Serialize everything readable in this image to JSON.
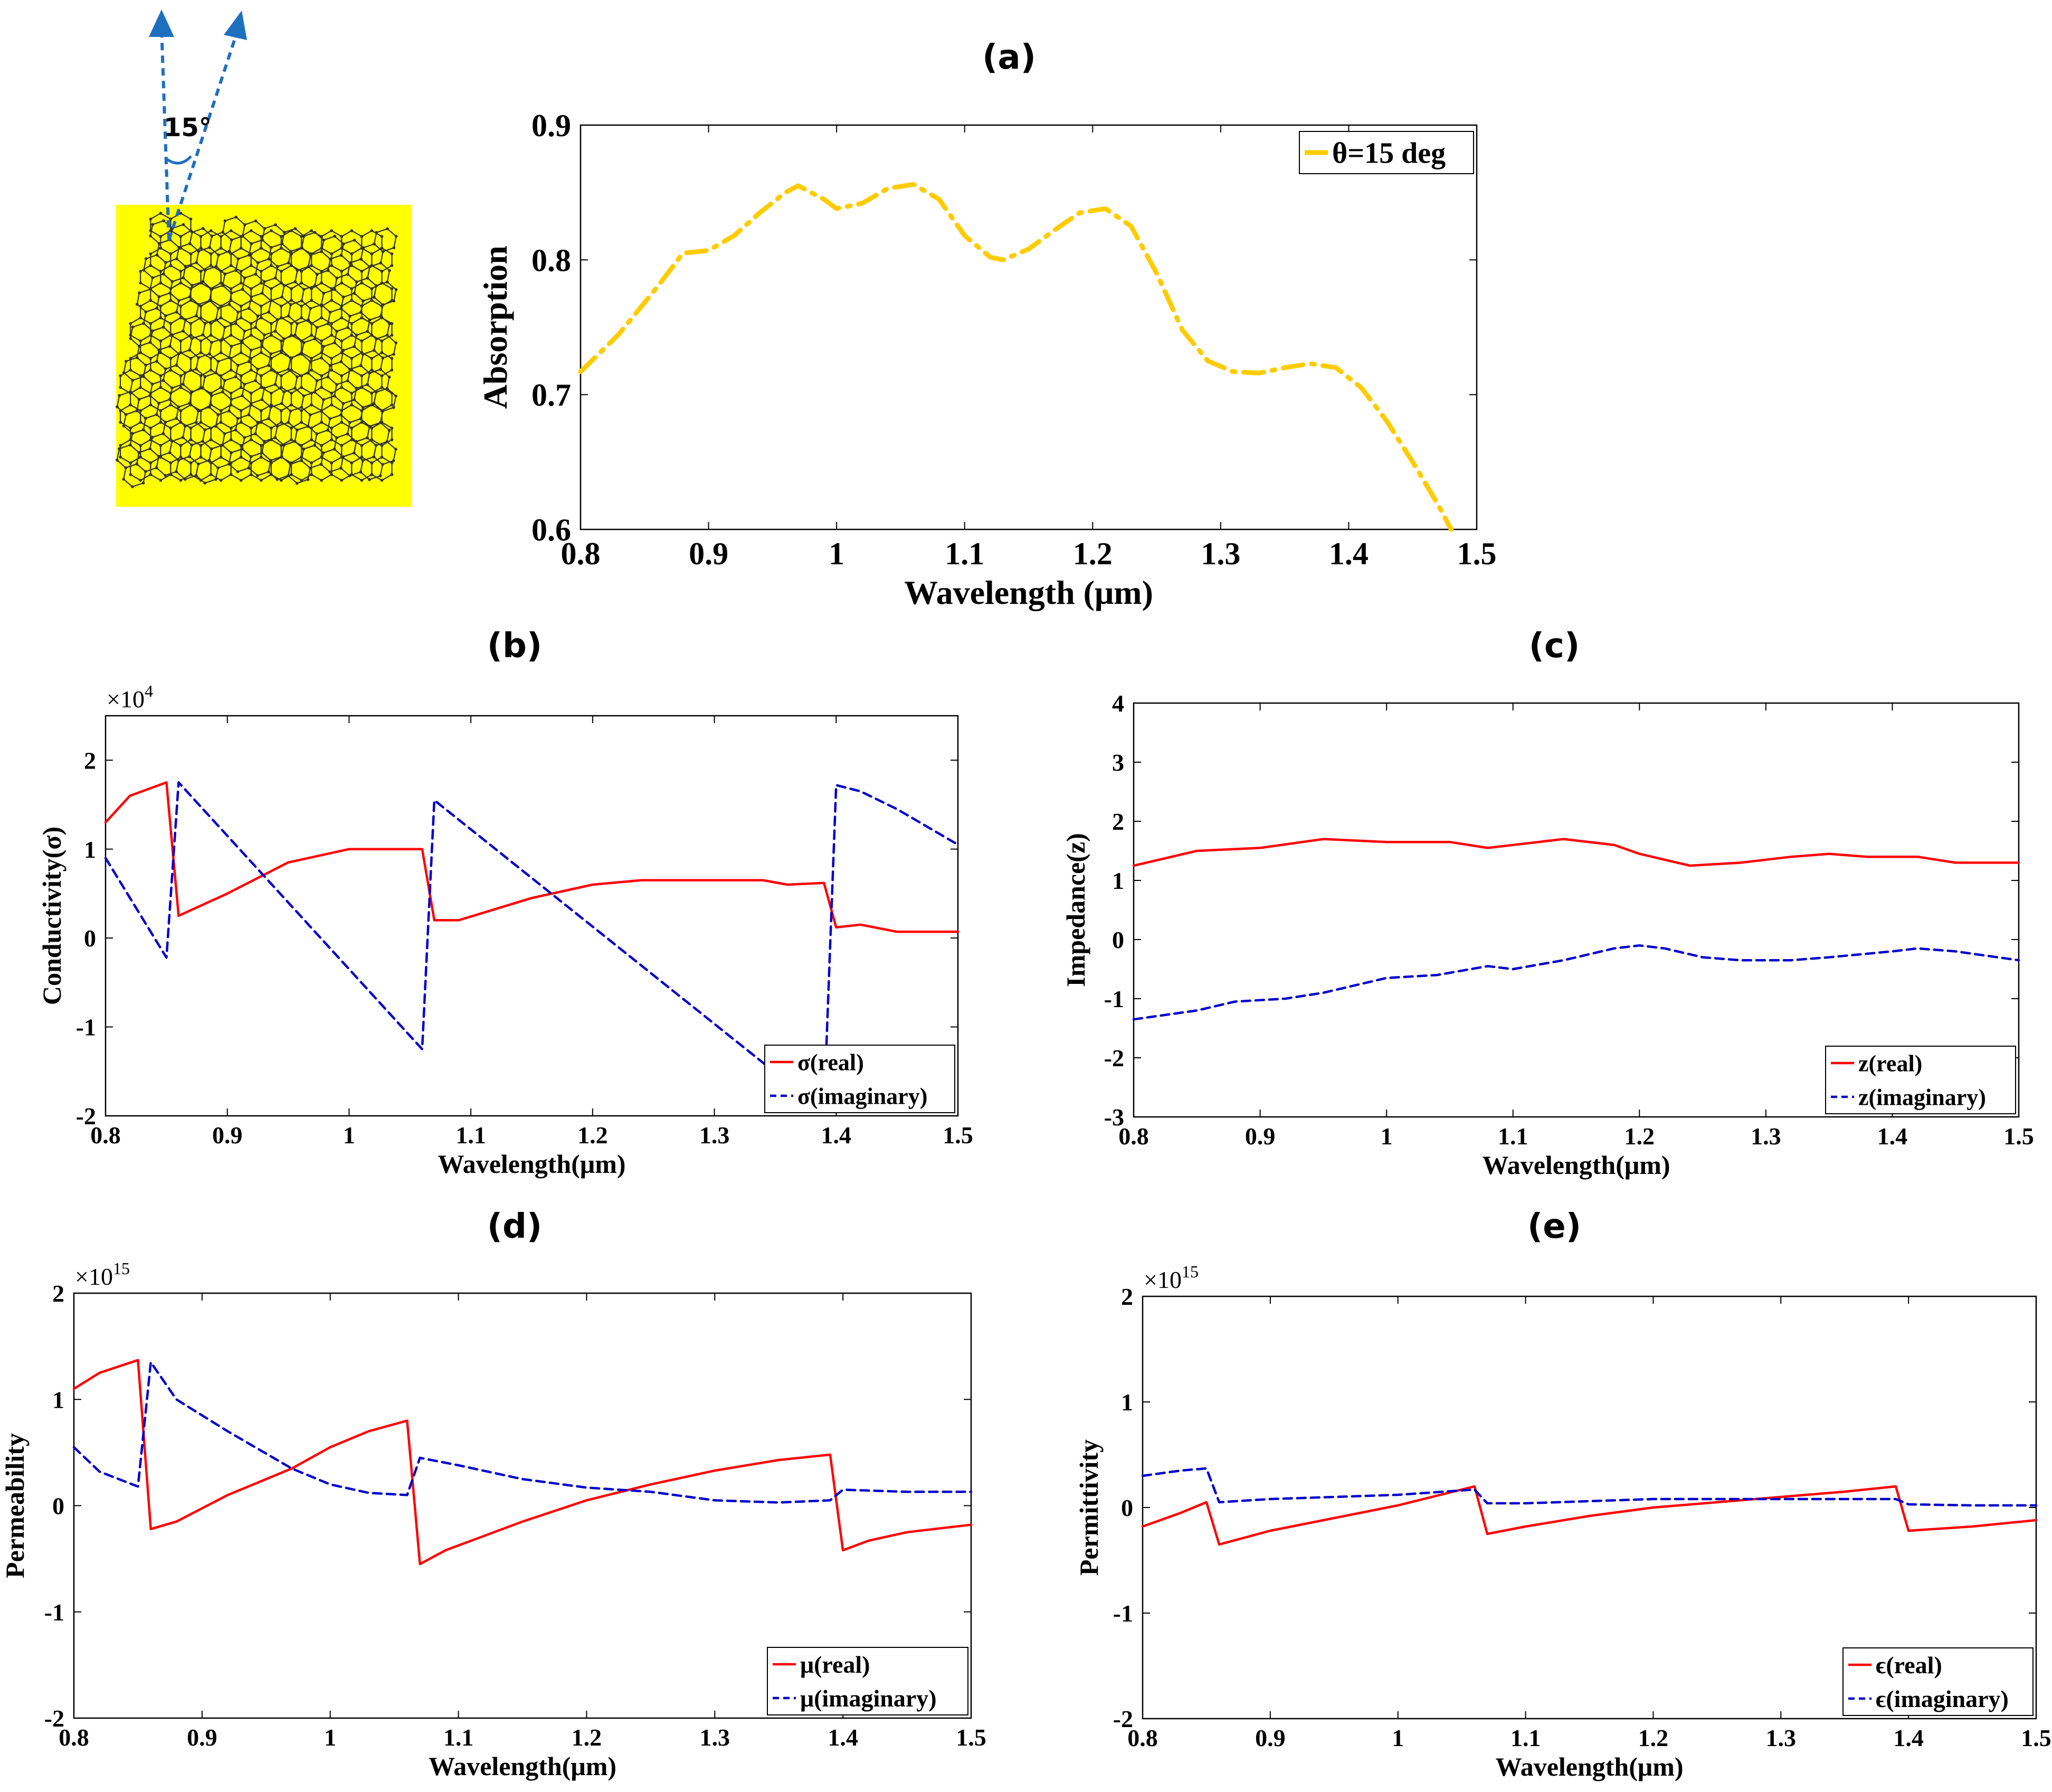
{
  "panel_labels": {
    "a": "(a)",
    "b": "(b)",
    "c": "(c)",
    "d": "(d)",
    "e": "(e)"
  },
  "illustration": {
    "angle_label": "15°",
    "substrate_color": "#ffff00",
    "lattice_color": "#333333",
    "arrow_color": "#1f6fbf"
  },
  "colors": {
    "absorption": "#ffcc00",
    "real": "#ff0000",
    "imag": "#0000cc"
  },
  "chart_data": [
    {
      "id": "a",
      "type": "line",
      "xlabel": "Wavelength (μm)",
      "ylabel": "Absorption",
      "xlim": [
        0.8,
        1.5
      ],
      "ylim": [
        0.6,
        0.9
      ],
      "xticks": [
        "0.8",
        "0.9",
        "1",
        "1.1",
        "1.2",
        "1.3",
        "1.4",
        "1.5"
      ],
      "yticks": [
        "0.6",
        "0.7",
        "0.8",
        "0.9"
      ],
      "legend_position": "top-right",
      "series": [
        {
          "name": "θ=15 deg",
          "style": "dashdot",
          "color": "#ffcc00",
          "x": [
            0.8,
            0.83,
            0.86,
            0.88,
            0.9,
            0.92,
            0.94,
            0.96,
            0.97,
            0.99,
            1.0,
            1.02,
            1.04,
            1.06,
            1.08,
            1.1,
            1.12,
            1.13,
            1.15,
            1.17,
            1.19,
            1.21,
            1.23,
            1.25,
            1.27,
            1.29,
            1.31,
            1.33,
            1.35,
            1.37,
            1.39,
            1.41,
            1.43,
            1.45,
            1.47,
            1.48
          ],
          "y": [
            0.717,
            0.745,
            0.78,
            0.805,
            0.807,
            0.818,
            0.835,
            0.85,
            0.855,
            0.845,
            0.838,
            0.842,
            0.853,
            0.856,
            0.845,
            0.818,
            0.802,
            0.8,
            0.808,
            0.822,
            0.835,
            0.838,
            0.825,
            0.79,
            0.748,
            0.725,
            0.717,
            0.716,
            0.72,
            0.723,
            0.72,
            0.705,
            0.68,
            0.65,
            0.618,
            0.6
          ]
        }
      ]
    },
    {
      "id": "b",
      "type": "line",
      "xlabel": "Wavelength(μm)",
      "ylabel": "Conductivity(σ)",
      "multiplier": "×10",
      "multiplier_exp": "4",
      "xlim": [
        0.8,
        1.5
      ],
      "ylim": [
        -2,
        2.5
      ],
      "xticks": [
        "0.8",
        "0.9",
        "1",
        "1.1",
        "1.2",
        "1.3",
        "1.4",
        "1.5"
      ],
      "yticks": [
        "-2",
        "-1",
        "0",
        "1",
        "2"
      ],
      "legend_position": "bottom-right",
      "series": [
        {
          "name": "σ(real)",
          "style": "solid",
          "color": "#ff0000",
          "x": [
            0.8,
            0.82,
            0.84,
            0.85,
            0.86,
            0.9,
            0.95,
            1.0,
            1.05,
            1.06,
            1.07,
            1.09,
            1.15,
            1.2,
            1.24,
            1.3,
            1.34,
            1.36,
            1.39,
            1.4,
            1.42,
            1.45,
            1.5
          ],
          "y": [
            1.3,
            1.6,
            1.7,
            1.75,
            0.25,
            0.5,
            0.85,
            1.0,
            1.0,
            1.0,
            0.2,
            0.2,
            0.45,
            0.6,
            0.65,
            0.65,
            0.65,
            0.6,
            0.62,
            0.12,
            0.15,
            0.07,
            0.07
          ]
        },
        {
          "name": "σ(imaginary)",
          "style": "dashed",
          "color": "#0000cc",
          "x": [
            0.8,
            0.85,
            0.86,
            1.06,
            1.07,
            1.39,
            1.4,
            1.42,
            1.45,
            1.5
          ],
          "y": [
            0.9,
            -0.22,
            1.75,
            -1.25,
            1.55,
            -1.95,
            1.72,
            1.65,
            1.45,
            1.05
          ]
        }
      ]
    },
    {
      "id": "c",
      "type": "line",
      "xlabel": "Wavelength(μm)",
      "ylabel": "Impedance(z)",
      "xlim": [
        0.8,
        1.5
      ],
      "ylim": [
        -3,
        4
      ],
      "xticks": [
        "0.8",
        "0.9",
        "1",
        "1.1",
        "1.2",
        "1.3",
        "1.4",
        "1.5"
      ],
      "yticks": [
        "-3",
        "-2",
        "-1",
        "0",
        "1",
        "2",
        "3",
        "4"
      ],
      "legend_position": "bottom-right",
      "series": [
        {
          "name": "z(real)",
          "style": "solid",
          "color": "#ff0000",
          "x": [
            0.8,
            0.85,
            0.9,
            0.95,
            1.0,
            1.05,
            1.08,
            1.1,
            1.14,
            1.18,
            1.2,
            1.24,
            1.28,
            1.32,
            1.35,
            1.38,
            1.42,
            1.45,
            1.5
          ],
          "y": [
            1.25,
            1.5,
            1.55,
            1.7,
            1.65,
            1.65,
            1.55,
            1.6,
            1.7,
            1.6,
            1.45,
            1.25,
            1.3,
            1.4,
            1.45,
            1.4,
            1.4,
            1.3,
            1.3
          ]
        },
        {
          "name": "z(imaginary)",
          "style": "dashed",
          "color": "#0000cc",
          "x": [
            0.8,
            0.85,
            0.88,
            0.92,
            0.95,
            1.0,
            1.04,
            1.08,
            1.1,
            1.14,
            1.18,
            1.2,
            1.22,
            1.25,
            1.28,
            1.32,
            1.35,
            1.4,
            1.42,
            1.45,
            1.5
          ],
          "y": [
            -1.35,
            -1.2,
            -1.05,
            -1.0,
            -0.9,
            -0.65,
            -0.6,
            -0.45,
            -0.5,
            -0.35,
            -0.15,
            -0.1,
            -0.15,
            -0.3,
            -0.35,
            -0.35,
            -0.3,
            -0.2,
            -0.15,
            -0.2,
            -0.35
          ]
        }
      ]
    },
    {
      "id": "d",
      "type": "line",
      "xlabel": "Wavelength(μm)",
      "ylabel": "Permeability",
      "multiplier": "×10",
      "multiplier_exp": "15",
      "xlim": [
        0.8,
        1.5
      ],
      "ylim": [
        -2,
        2
      ],
      "xticks": [
        "0.8",
        "0.9",
        "1",
        "1.1",
        "1.2",
        "1.3",
        "1.4",
        "1.5"
      ],
      "yticks": [
        "-2",
        "-1",
        "0",
        "1",
        "2"
      ],
      "legend_position": "bottom-right",
      "series": [
        {
          "name": "μ(real)",
          "style": "solid",
          "color": "#ff0000",
          "x": [
            0.8,
            0.82,
            0.84,
            0.85,
            0.86,
            0.88,
            0.92,
            0.97,
            1.0,
            1.03,
            1.06,
            1.07,
            1.09,
            1.15,
            1.2,
            1.25,
            1.3,
            1.35,
            1.39,
            1.4,
            1.42,
            1.45,
            1.5
          ],
          "y": [
            1.1,
            1.25,
            1.33,
            1.37,
            -0.22,
            -0.15,
            0.1,
            0.35,
            0.55,
            0.7,
            0.8,
            -0.55,
            -0.42,
            -0.15,
            0.05,
            0.2,
            0.33,
            0.43,
            0.48,
            -0.42,
            -0.33,
            -0.25,
            -0.18
          ]
        },
        {
          "name": "μ(imaginary)",
          "style": "dashed",
          "color": "#0000cc",
          "x": [
            0.8,
            0.82,
            0.85,
            0.86,
            0.88,
            0.92,
            0.97,
            1.0,
            1.03,
            1.06,
            1.07,
            1.1,
            1.15,
            1.2,
            1.25,
            1.3,
            1.35,
            1.39,
            1.4,
            1.45,
            1.5
          ],
          "y": [
            0.55,
            0.32,
            0.18,
            1.35,
            1.0,
            0.7,
            0.35,
            0.2,
            0.12,
            0.1,
            0.45,
            0.38,
            0.25,
            0.17,
            0.13,
            0.05,
            0.03,
            0.05,
            0.15,
            0.13,
            0.13
          ]
        }
      ]
    },
    {
      "id": "e",
      "type": "line",
      "xlabel": "Wavelength(μm)",
      "ylabel": "Permittivity",
      "multiplier": "×10",
      "multiplier_exp": "15",
      "xlim": [
        0.8,
        1.5
      ],
      "ylim": [
        -2,
        2
      ],
      "xticks": [
        "0.8",
        "0.9",
        "1",
        "1.1",
        "1.2",
        "1.3",
        "1.4",
        "1.5"
      ],
      "yticks": [
        "-2",
        "-1",
        "0",
        "1",
        "2"
      ],
      "legend_position": "bottom-right",
      "series": [
        {
          "name": "ϵ(real)",
          "style": "solid",
          "color": "#ff0000",
          "x": [
            0.8,
            0.83,
            0.85,
            0.86,
            0.9,
            0.95,
            1.0,
            1.06,
            1.07,
            1.1,
            1.15,
            1.2,
            1.25,
            1.3,
            1.35,
            1.39,
            1.4,
            1.45,
            1.5
          ],
          "y": [
            -0.18,
            -0.05,
            0.05,
            -0.35,
            -0.22,
            -0.1,
            0.02,
            0.2,
            -0.25,
            -0.18,
            -0.08,
            0.0,
            0.05,
            0.1,
            0.15,
            0.2,
            -0.22,
            -0.18,
            -0.12
          ]
        },
        {
          "name": "ϵ(imaginary)",
          "style": "dashed",
          "color": "#0000cc",
          "x": [
            0.8,
            0.83,
            0.85,
            0.86,
            0.9,
            0.95,
            1.0,
            1.06,
            1.07,
            1.1,
            1.15,
            1.2,
            1.25,
            1.3,
            1.35,
            1.39,
            1.4,
            1.45,
            1.5
          ],
          "y": [
            0.3,
            0.35,
            0.37,
            0.05,
            0.08,
            0.1,
            0.12,
            0.17,
            0.04,
            0.04,
            0.06,
            0.08,
            0.08,
            0.08,
            0.08,
            0.08,
            0.03,
            0.02,
            0.02
          ]
        }
      ]
    }
  ]
}
